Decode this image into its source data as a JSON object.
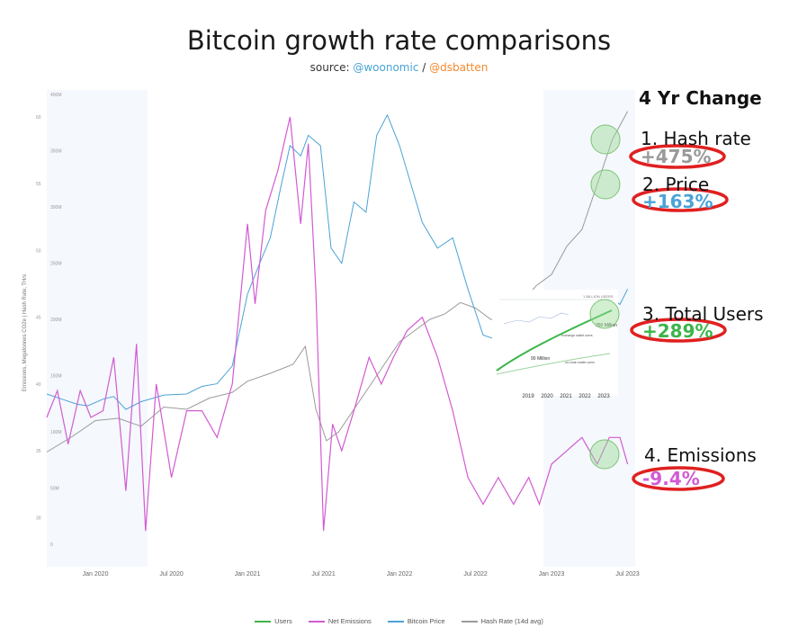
{
  "header": {
    "title": "Bitcoin growth rate comparisons",
    "source_prefix": "source: ",
    "source_a": "@woonomic",
    "source_sep": " / ",
    "source_b": "@dsbatten"
  },
  "panel": {
    "heading": "4 Yr Change",
    "items": [
      {
        "label": "1. Hash rate",
        "value": "+475%",
        "color": "#9a9a9a"
      },
      {
        "label": "2. Price",
        "value": "+163%",
        "color": "#4aa3d6"
      },
      {
        "label": "3. Total Users",
        "value": "+289%",
        "color": "#3bb54a"
      },
      {
        "label": "4. Emissions",
        "value": "-9.4%",
        "color": "#d25bd2"
      }
    ]
  },
  "inset": {
    "label_top": "1 BILLION USERS",
    "label_350": "350 Million",
    "label_90": "90 Million",
    "label_exchange": "exchange wallet users",
    "label_onchain": "on-chain wallet users",
    "years": [
      "2019",
      "2020",
      "2021",
      "2022",
      "2023"
    ]
  },
  "chart_data": {
    "type": "line",
    "title": "Bitcoin growth rate comparisons",
    "x_ticks": [
      "Jan 2020",
      "Jul 2020",
      "Jan 2021",
      "Jul 2021",
      "Jan 2022",
      "Jul 2022",
      "Jan 2023",
      "Jul 2023"
    ],
    "ylabel": "Emissions, Megatonnes CO2e | Hash Rate, TH/s",
    "y_hash_ticks": [
      "0",
      "50M",
      "100M",
      "150M",
      "200M",
      "250M",
      "300M",
      "350M",
      "400M"
    ],
    "y_em_ticks": [
      "30",
      "35",
      "40",
      "45",
      "50",
      "55",
      "60"
    ],
    "legend": [
      "Users",
      "Net Emissions",
      "Bitcoin Price",
      "Hash Rate (14d avg)"
    ],
    "colors": {
      "users": "#3bb54a",
      "emissions": "#d25bd2",
      "price": "#4aa3d6",
      "hashrate": "#9a9a9a"
    },
    "series": [
      {
        "name": "Hash Rate (14d avg)",
        "x": [
          2019.68,
          2019.85,
          2020.0,
          2020.15,
          2020.3,
          2020.45,
          2020.6,
          2020.75,
          2020.9,
          2021.0,
          2021.15,
          2021.3,
          2021.38,
          2021.45,
          2021.52,
          2021.6,
          2021.7,
          2021.8,
          2021.9,
          2022.0,
          2022.1,
          2022.2,
          2022.3,
          2022.4,
          2022.5,
          2022.6,
          2022.7,
          2022.8,
          2022.9,
          2023.0,
          2023.1,
          2023.2,
          2023.3,
          2023.4,
          2023.5
        ],
        "values": [
          82,
          96,
          110,
          112,
          105,
          122,
          120,
          130,
          135,
          145,
          152,
          160,
          176,
          120,
          92,
          100,
          120,
          140,
          160,
          180,
          190,
          200,
          205,
          215,
          210,
          200,
          200,
          215,
          230,
          240,
          265,
          280,
          320,
          360,
          385
        ]
      },
      {
        "name": "Net Emissions",
        "x": [
          2019.68,
          2019.75,
          2019.82,
          2019.9,
          2019.97,
          2020.05,
          2020.12,
          2020.2,
          2020.27,
          2020.33,
          2020.4,
          2020.5,
          2020.6,
          2020.7,
          2020.8,
          2020.9,
          2021.0,
          2021.05,
          2021.12,
          2021.2,
          2021.28,
          2021.35,
          2021.4,
          2021.45,
          2021.5,
          2021.56,
          2021.62,
          2021.7,
          2021.8,
          2021.88,
          2021.96,
          2022.05,
          2022.15,
          2022.25,
          2022.35,
          2022.45,
          2022.55,
          2022.65,
          2022.75,
          2022.85,
          2022.92,
          2023.0,
          2023.1,
          2023.2,
          2023.3,
          2023.38,
          2023.45,
          2023.5
        ],
        "values": [
          37.5,
          39.5,
          35.5,
          39.5,
          37.5,
          38,
          42,
          32,
          43,
          29,
          40,
          33,
          38,
          38,
          36,
          40,
          52,
          46,
          53,
          56,
          60,
          52,
          58,
          47,
          29,
          37,
          35,
          38,
          42,
          40,
          42,
          44,
          45,
          42,
          38,
          33,
          31,
          33,
          31,
          33,
          31,
          34,
          35,
          36,
          34,
          36,
          36,
          34
        ]
      },
      {
        "name": "Bitcoin Price",
        "x": [
          2019.68,
          2019.78,
          2019.88,
          2019.95,
          2020.05,
          2020.12,
          2020.2,
          2020.3,
          2020.45,
          2020.6,
          2020.7,
          2020.8,
          2020.9,
          2021.0,
          2021.08,
          2021.15,
          2021.22,
          2021.28,
          2021.35,
          2021.4,
          2021.48,
          2021.55,
          2021.62,
          2021.7,
          2021.78,
          2021.85,
          2021.92,
          2022.0,
          2022.08,
          2022.15,
          2022.25,
          2022.35,
          2022.45,
          2022.55,
          2022.65,
          2022.75,
          2022.85,
          2022.95,
          2023.05,
          2023.15,
          2023.25,
          2023.35,
          2023.45,
          2023.5
        ],
        "values": [
          9500,
          8500,
          7500,
          7200,
          8500,
          9000,
          6500,
          8000,
          9300,
          9500,
          11000,
          11500,
          15000,
          29000,
          35000,
          40000,
          50000,
          58000,
          56000,
          60000,
          58000,
          38000,
          35000,
          47000,
          45000,
          60000,
          64000,
          58000,
          50000,
          43000,
          38000,
          40000,
          30000,
          21000,
          20000,
          19500,
          20000,
          17000,
          19000,
          22000,
          27000,
          29000,
          27000,
          30000
        ]
      },
      {
        "name": "Users",
        "x": [
          2019.0,
          2023.5
        ],
        "values": [
          90,
          350
        ]
      }
    ]
  }
}
